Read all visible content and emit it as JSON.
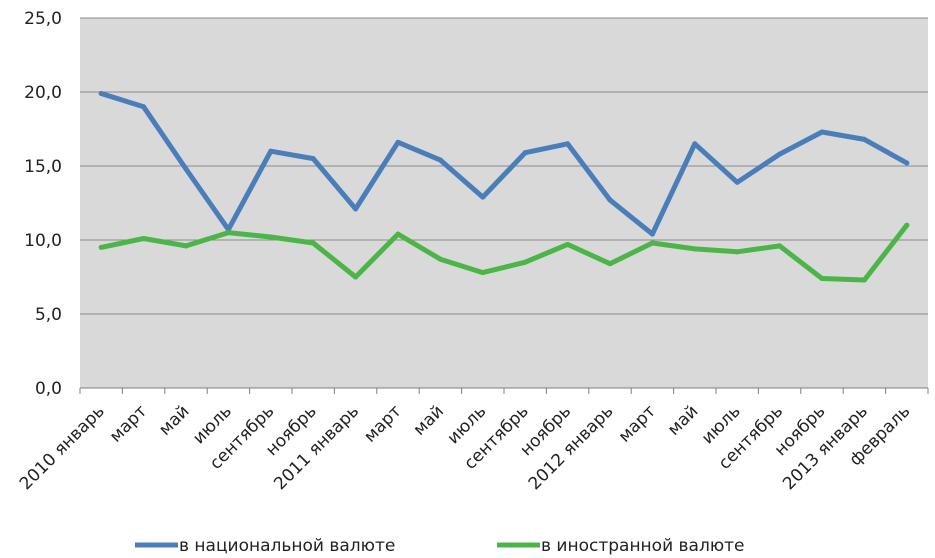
{
  "chart_data": {
    "type": "line",
    "categories": [
      "2010 январь",
      "март",
      "май",
      "июль",
      "сентябрь",
      "ноябрь",
      "2011 январь",
      "март",
      "май",
      "июль",
      "сентябрь",
      "ноябрь",
      "2012 январь",
      "март",
      "май",
      "июль",
      "сентябрь",
      "ноябрь",
      "2013 январь",
      "февраль"
    ],
    "series": [
      {
        "name": "в национальной валюте",
        "color": "#4a7ebb",
        "values": [
          19.9,
          19.0,
          14.8,
          10.7,
          16.0,
          15.5,
          12.1,
          16.6,
          15.4,
          12.9,
          15.9,
          16.5,
          12.7,
          10.4,
          16.5,
          13.9,
          15.8,
          17.3,
          16.8,
          15.2
        ]
      },
      {
        "name": "в иностранной валюте",
        "color": "#4cb548",
        "values": [
          9.5,
          10.1,
          9.6,
          10.5,
          10.2,
          9.8,
          7.5,
          10.4,
          8.7,
          7.8,
          8.5,
          9.7,
          8.4,
          9.8,
          9.4,
          9.2,
          9.6,
          7.4,
          7.3,
          11.0
        ]
      }
    ],
    "yticks": [
      "0,0",
      "5,0",
      "10,0",
      "15,0",
      "20,0",
      "25,0"
    ],
    "ylim": [
      0,
      25
    ],
    "grid": true,
    "legend": "bottom",
    "plot_bg": "#d9d9d9"
  }
}
